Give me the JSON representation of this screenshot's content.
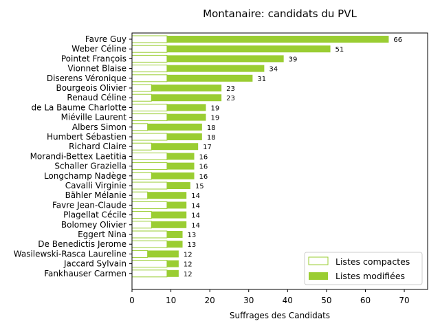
{
  "chart_data": {
    "type": "bar",
    "orientation": "horizontal",
    "stacked": true,
    "title": "Montanaire: candidats du PVL",
    "xlabel": "Suffrages des Candidats",
    "ylabel": "",
    "xlim": [
      0,
      76
    ],
    "xticks": [
      0,
      10,
      20,
      30,
      40,
      50,
      60,
      70
    ],
    "legend_position": "lower-right",
    "categories": [
      "Favre Guy",
      "Weber Céline",
      "Pointet François",
      "Vionnet Blaise",
      "Diserens Véronique",
      "Bourgeois Olivier",
      "Renaud Céline",
      "de La Baume Charlotte",
      "Miéville Laurent",
      "Albers Simon",
      "Humbert Sébastien",
      "Richard Claire",
      "Morandi-Bettex Laetitia",
      "Schaller Graziella",
      "Longchamp Nadège",
      "Cavalli Virginie",
      "Bähler Mélanie",
      "Favre Jean-Claude",
      "Plagellat Cécile",
      "Bolomey Olivier",
      "Eggert Nina",
      "De Benedictis Jerome",
      "Wasilewski-Rasca Laureline",
      "Jaccard Sylvain",
      "Fankhauser Carmen"
    ],
    "series": [
      {
        "name": "Listes compactes",
        "color": "#ffffff",
        "edgecolor": "#9acd32",
        "values": [
          9,
          9,
          9,
          9,
          9,
          5,
          5,
          9,
          9,
          4,
          9,
          5,
          9,
          9,
          5,
          9,
          4,
          9,
          5,
          5,
          9,
          9,
          4,
          9,
          9
        ]
      },
      {
        "name": "Listes modifiées",
        "color": "#9acd32",
        "values": [
          57,
          42,
          30,
          25,
          22,
          18,
          18,
          10,
          10,
          14,
          9,
          12,
          7,
          7,
          11,
          6,
          10,
          5,
          9,
          9,
          4,
          4,
          8,
          3,
          3
        ]
      }
    ],
    "totals": [
      66,
      51,
      39,
      34,
      31,
      23,
      23,
      19,
      19,
      18,
      18,
      17,
      16,
      16,
      16,
      15,
      14,
      14,
      14,
      14,
      13,
      13,
      12,
      12,
      12
    ]
  }
}
